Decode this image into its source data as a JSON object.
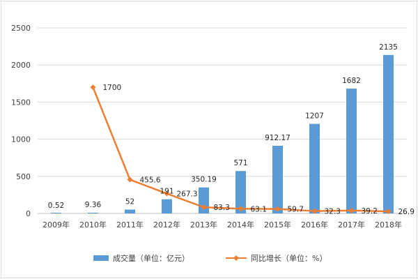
{
  "chart_data": {
    "type": "bar",
    "categories": [
      "2009年",
      "2010年",
      "2011年",
      "2012年",
      "2013年",
      "2014年",
      "2015年",
      "2016年",
      "2017年",
      "2018年"
    ],
    "series": [
      {
        "name": "成交量（单位：亿元）",
        "type": "bar",
        "axis": "left",
        "values": [
          0.52,
          9.36,
          52,
          191,
          350.19,
          571,
          912.17,
          1207,
          1682,
          2135
        ],
        "labels": [
          "0.52",
          "9.36",
          "52",
          "191",
          "350.19",
          "571",
          "912.17",
          "1207",
          "1682",
          "2135"
        ],
        "color": "#5b9bd5"
      },
      {
        "name": "同比增长（单位：%）",
        "type": "line",
        "axis": "left",
        "values": [
          null,
          1700,
          455.6,
          267.3,
          83.3,
          63.1,
          59.7,
          32.3,
          39.2,
          26.9
        ],
        "labels": [
          "",
          "1700",
          "455.6",
          "267.3",
          "83.3",
          "63.1",
          "59.7",
          "32.3",
          "39.2",
          "26.9"
        ],
        "color": "#ed7d31",
        "marker": "diamond"
      }
    ],
    "yticks": [
      "0",
      "500",
      "1000",
      "1500",
      "2000",
      "2500"
    ],
    "ylim": [
      0,
      2500
    ],
    "grid": true,
    "legend": "bottom",
    "title": "",
    "xlabel": "",
    "ylabel": ""
  }
}
